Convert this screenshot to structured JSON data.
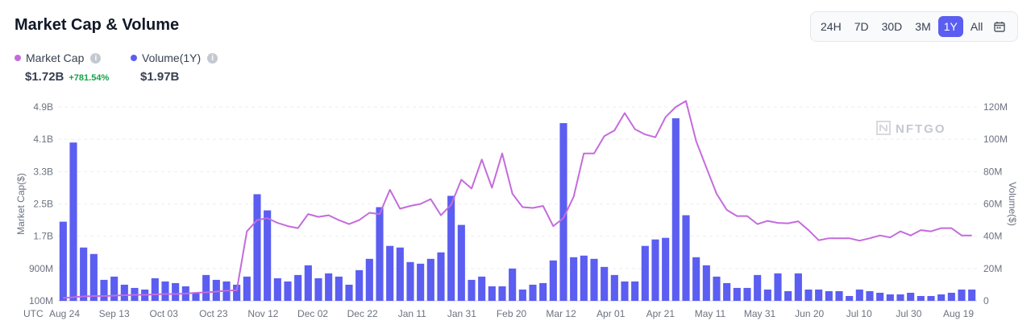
{
  "header": {
    "title": "Market Cap & Volume",
    "ranges": [
      "24H",
      "7D",
      "30D",
      "3M",
      "1Y",
      "All"
    ],
    "active_range": "1Y"
  },
  "legend": {
    "market_cap_label": "Market Cap",
    "market_cap_value": "$1.72B",
    "market_cap_change": "+781.54%",
    "volume_label": "Volume(1Y)",
    "volume_value": "$1.97B"
  },
  "colors": {
    "market_cap": "#c46bdc",
    "volume": "#5b5ef0",
    "change_positive": "#16a34a"
  },
  "watermark": "NFTGO",
  "chart_data": {
    "type": "bar",
    "x_label": "UTC",
    "left_axis_label": "Market Cap($)",
    "right_axis_label": "Volume($)",
    "left_ticks": [
      "100M",
      "900M",
      "1.7B",
      "2.5B",
      "3.3B",
      "4.1B",
      "4.9B"
    ],
    "left_tick_values": [
      0.1,
      0.9,
      1.7,
      2.5,
      3.3,
      4.1,
      4.9
    ],
    "right_ticks": [
      "0",
      "20M",
      "40M",
      "60M",
      "80M",
      "100M",
      "120M"
    ],
    "right_tick_values": [
      0,
      20,
      40,
      60,
      80,
      100,
      120
    ],
    "ylim_left_billions": [
      0.1,
      4.9
    ],
    "ylim_right_millions": [
      0,
      120
    ],
    "x_ticks": [
      "Aug 24",
      "Sep 13",
      "Oct 03",
      "Oct 23",
      "Nov 12",
      "Dec 02",
      "Dec 22",
      "Jan 11",
      "Jan 31",
      "Feb 20",
      "Mar 12",
      "Apr 01",
      "Apr 21",
      "May 11",
      "May 31",
      "Jun 20",
      "Jul 10",
      "Jul 30",
      "Aug 19"
    ],
    "grid": true,
    "series": [
      {
        "name": "Volume(1Y)",
        "type": "bar",
        "axis": "right",
        "unit": "M",
        "values": [
          49,
          98,
          33,
          29,
          13,
          15,
          10,
          8,
          7,
          14,
          12,
          11,
          9,
          5,
          16,
          13,
          12,
          10,
          15,
          66,
          56,
          14,
          12,
          16,
          22,
          14,
          17,
          15,
          10,
          19,
          26,
          58,
          34,
          33,
          24,
          23,
          26,
          30,
          65,
          47,
          13,
          15,
          9,
          9,
          20,
          7,
          10,
          11,
          25,
          110,
          27,
          28,
          26,
          21,
          16,
          12,
          12,
          34,
          38,
          39,
          113,
          53,
          27,
          22,
          15,
          11,
          8,
          8,
          16,
          7,
          17,
          6,
          17,
          7,
          7,
          6,
          6,
          3,
          7,
          6,
          5,
          4,
          4,
          5,
          3,
          3,
          4,
          5,
          7,
          7
        ]
      },
      {
        "name": "Market Cap",
        "type": "line",
        "axis": "left",
        "unit": "B",
        "values": [
          0.17,
          0.19,
          0.21,
          0.22,
          0.22,
          0.23,
          0.24,
          0.25,
          0.25,
          0.26,
          0.27,
          0.27,
          0.28,
          0.3,
          0.31,
          0.33,
          0.35,
          0.36,
          1.82,
          2.1,
          2.15,
          2.03,
          1.95,
          1.9,
          2.25,
          2.18,
          2.22,
          2.1,
          2.0,
          2.1,
          2.28,
          2.25,
          2.85,
          2.38,
          2.45,
          2.5,
          2.62,
          2.22,
          2.48,
          3.1,
          2.88,
          3.6,
          2.9,
          3.75,
          2.75,
          2.42,
          2.4,
          2.45,
          1.95,
          2.15,
          2.68,
          3.75,
          3.75,
          4.18,
          4.32,
          4.75,
          4.35,
          4.22,
          4.15,
          4.65,
          4.9,
          5.05,
          4.05,
          3.4,
          2.75,
          2.35,
          2.2,
          2.2,
          2.0,
          2.08,
          2.03,
          2.02,
          2.07,
          1.85,
          1.6,
          1.65,
          1.65,
          1.65,
          1.59,
          1.65,
          1.72,
          1.67,
          1.82,
          1.72,
          1.85,
          1.82,
          1.9,
          1.9,
          1.72,
          1.72
        ]
      }
    ]
  }
}
